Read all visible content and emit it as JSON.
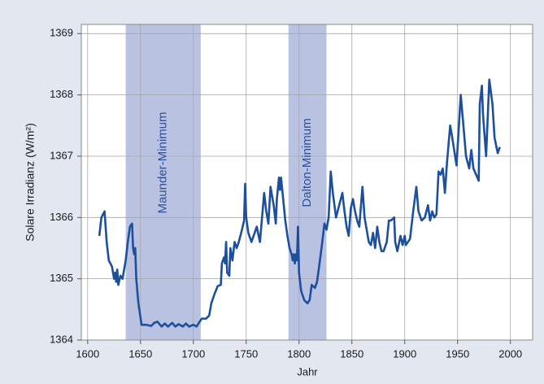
{
  "chart_data": {
    "type": "line",
    "xlabel": "Jahr",
    "ylabel": "Solare Irradianz (W/m²)",
    "color": "#1c4f9c",
    "band_color": "#b9c3e1",
    "grid": true,
    "bands": [
      {
        "label": "Maunder-Minimum",
        "start": 1636,
        "end": 1707
      },
      {
        "label": "Dalton-Minimum",
        "start": 1790,
        "end": 1826
      }
    ],
    "xlim": [
      1594,
      2021
    ],
    "ylim": [
      1364,
      1369.15
    ],
    "xticks": [
      1600,
      1650,
      1700,
      1750,
      1800,
      1850,
      1900,
      1950,
      2000
    ],
    "yticks": [
      1364,
      1365,
      1366,
      1367,
      1368,
      1369
    ],
    "x": [
      1611,
      1613,
      1616,
      1618,
      1620,
      1623,
      1625,
      1626,
      1627,
      1628,
      1629,
      1631,
      1633,
      1636,
      1638,
      1640,
      1642,
      1643,
      1644,
      1645,
      1646,
      1648,
      1651,
      1655,
      1660,
      1663,
      1666,
      1670,
      1673,
      1676,
      1680,
      1683,
      1686,
      1690,
      1693,
      1696,
      1700,
      1703,
      1706,
      1708,
      1712,
      1715,
      1717,
      1720,
      1723,
      1726,
      1727,
      1729,
      1730,
      1731,
      1732,
      1734,
      1735,
      1737,
      1739,
      1741,
      1743,
      1746,
      1748,
      1749,
      1750,
      1752,
      1755,
      1758,
      1760,
      1763,
      1767,
      1769,
      1771,
      1773,
      1776,
      1778,
      1779,
      1781,
      1782,
      1783,
      1785,
      1787,
      1789,
      1791,
      1793,
      1794,
      1795,
      1796,
      1797,
      1798,
      1799,
      1800,
      1802,
      1805,
      1808,
      1810,
      1812,
      1815,
      1817,
      1819,
      1822,
      1824,
      1826,
      1828,
      1830,
      1832,
      1835,
      1838,
      1841,
      1843,
      1845,
      1847,
      1849,
      1851,
      1853,
      1855,
      1857,
      1860,
      1862,
      1864,
      1866,
      1868,
      1870,
      1872,
      1874,
      1876,
      1878,
      1880,
      1883,
      1885,
      1887,
      1890,
      1891,
      1893,
      1896,
      1898,
      1900,
      1901,
      1903,
      1905,
      1908,
      1911,
      1913,
      1916,
      1919,
      1922,
      1924,
      1926,
      1928,
      1930,
      1932,
      1934,
      1936,
      1938,
      1940,
      1943,
      1945,
      1949,
      1953,
      1955,
      1958,
      1961,
      1963,
      1965,
      1970,
      1971,
      1973,
      1974,
      1977,
      1980,
      1983,
      1985,
      1988,
      1990
    ],
    "values": [
      1365.7,
      1366.0,
      1366.1,
      1365.6,
      1365.3,
      1365.2,
      1365.0,
      1365.1,
      1364.95,
      1365.15,
      1364.9,
      1365.05,
      1365.0,
      1365.3,
      1365.6,
      1365.85,
      1365.9,
      1365.5,
      1365.4,
      1365.5,
      1365.0,
      1364.6,
      1364.25,
      1364.25,
      1364.23,
      1364.28,
      1364.3,
      1364.22,
      1364.27,
      1364.22,
      1364.28,
      1364.22,
      1364.26,
      1364.22,
      1364.27,
      1364.22,
      1364.25,
      1364.22,
      1364.3,
      1364.35,
      1364.35,
      1364.4,
      1364.6,
      1364.75,
      1364.88,
      1364.9,
      1365.25,
      1365.35,
      1365.25,
      1365.6,
      1365.1,
      1365.05,
      1365.5,
      1365.3,
      1365.6,
      1365.5,
      1365.6,
      1365.8,
      1365.95,
      1366.55,
      1366.0,
      1365.75,
      1365.6,
      1365.75,
      1365.85,
      1365.6,
      1366.4,
      1366.1,
      1365.9,
      1366.5,
      1366.2,
      1365.9,
      1366.3,
      1366.65,
      1366.45,
      1366.65,
      1366.3,
      1365.95,
      1365.7,
      1365.5,
      1365.4,
      1365.3,
      1365.4,
      1365.25,
      1365.4,
      1365.3,
      1365.85,
      1365.1,
      1364.8,
      1364.65,
      1364.6,
      1364.65,
      1364.9,
      1364.85,
      1364.95,
      1365.2,
      1365.6,
      1365.9,
      1365.8,
      1366.0,
      1366.75,
      1366.4,
      1366.0,
      1366.2,
      1366.4,
      1366.1,
      1365.85,
      1365.7,
      1366.15,
      1366.3,
      1366.1,
      1365.95,
      1365.85,
      1366.5,
      1366.0,
      1365.8,
      1365.6,
      1365.55,
      1365.75,
      1365.5,
      1365.85,
      1365.6,
      1365.45,
      1365.45,
      1365.6,
      1365.95,
      1365.95,
      1366.0,
      1365.6,
      1365.45,
      1365.7,
      1365.55,
      1365.7,
      1365.55,
      1365.6,
      1365.65,
      1366.1,
      1366.5,
      1366.1,
      1365.95,
      1366.0,
      1366.2,
      1365.95,
      1366.1,
      1366.0,
      1366.05,
      1366.75,
      1366.7,
      1366.8,
      1366.4,
      1366.9,
      1367.5,
      1367.3,
      1366.85,
      1368.0,
      1367.6,
      1367.0,
      1366.8,
      1367.1,
      1366.8,
      1366.6,
      1367.85,
      1368.15,
      1367.7,
      1367.0,
      1368.25,
      1367.85,
      1367.3,
      1367.05,
      1367.15
    ]
  }
}
